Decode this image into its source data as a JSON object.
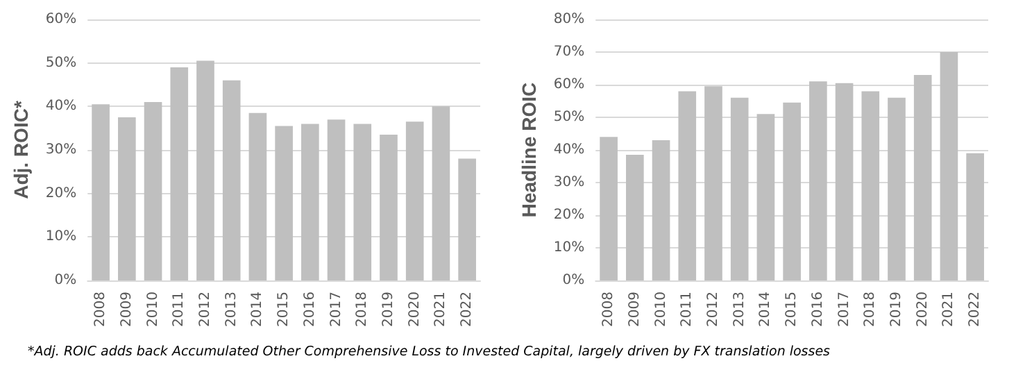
{
  "chart_data": [
    {
      "type": "bar",
      "ylabel": "Adj. ROIC*",
      "categories": [
        "2008",
        "2009",
        "2010",
        "2011",
        "2012",
        "2013",
        "2014",
        "2015",
        "2016",
        "2017",
        "2018",
        "2019",
        "2020",
        "2021",
        "2022"
      ],
      "values": [
        40.5,
        37.5,
        41,
        49,
        50.5,
        46,
        38.5,
        35.5,
        36,
        37,
        36,
        33.5,
        36.5,
        40,
        28
      ],
      "color": "#bfbfbf",
      "ylim": [
        0,
        60
      ],
      "yticks": [
        {
          "value": 0,
          "label": "0%"
        },
        {
          "value": 10,
          "label": "10%"
        },
        {
          "value": 20,
          "label": "20%"
        },
        {
          "value": 30,
          "label": "30%"
        },
        {
          "value": 40,
          "label": "40%"
        },
        {
          "value": 50,
          "label": "50%"
        },
        {
          "value": 60,
          "label": "60%"
        }
      ],
      "grid": "y",
      "annotations": [
        "*Adj. ROIC adds back Accumulated Other Comprehensive Loss to Invested Capital, largely driven by FX translation losses"
      ]
    },
    {
      "type": "bar",
      "ylabel": "Headline ROIC",
      "categories": [
        "2008",
        "2009",
        "2010",
        "2011",
        "2012",
        "2013",
        "2014",
        "2015",
        "2016",
        "2017",
        "2018",
        "2019",
        "2020",
        "2021",
        "2022"
      ],
      "values": [
        44,
        38.5,
        43,
        58,
        59.5,
        56,
        51,
        54.5,
        61,
        60.5,
        58,
        56,
        63,
        70,
        39
      ],
      "color": "#bfbfbf",
      "ylim": [
        0,
        80
      ],
      "yticks": [
        {
          "value": 0,
          "label": "0%"
        },
        {
          "value": 10,
          "label": "10%"
        },
        {
          "value": 20,
          "label": "20%"
        },
        {
          "value": 30,
          "label": "30%"
        },
        {
          "value": 40,
          "label": "40%"
        },
        {
          "value": 50,
          "label": "50%"
        },
        {
          "value": 60,
          "label": "60%"
        },
        {
          "value": 70,
          "label": "70%"
        },
        {
          "value": 80,
          "label": "80%"
        }
      ],
      "grid": "y"
    }
  ]
}
